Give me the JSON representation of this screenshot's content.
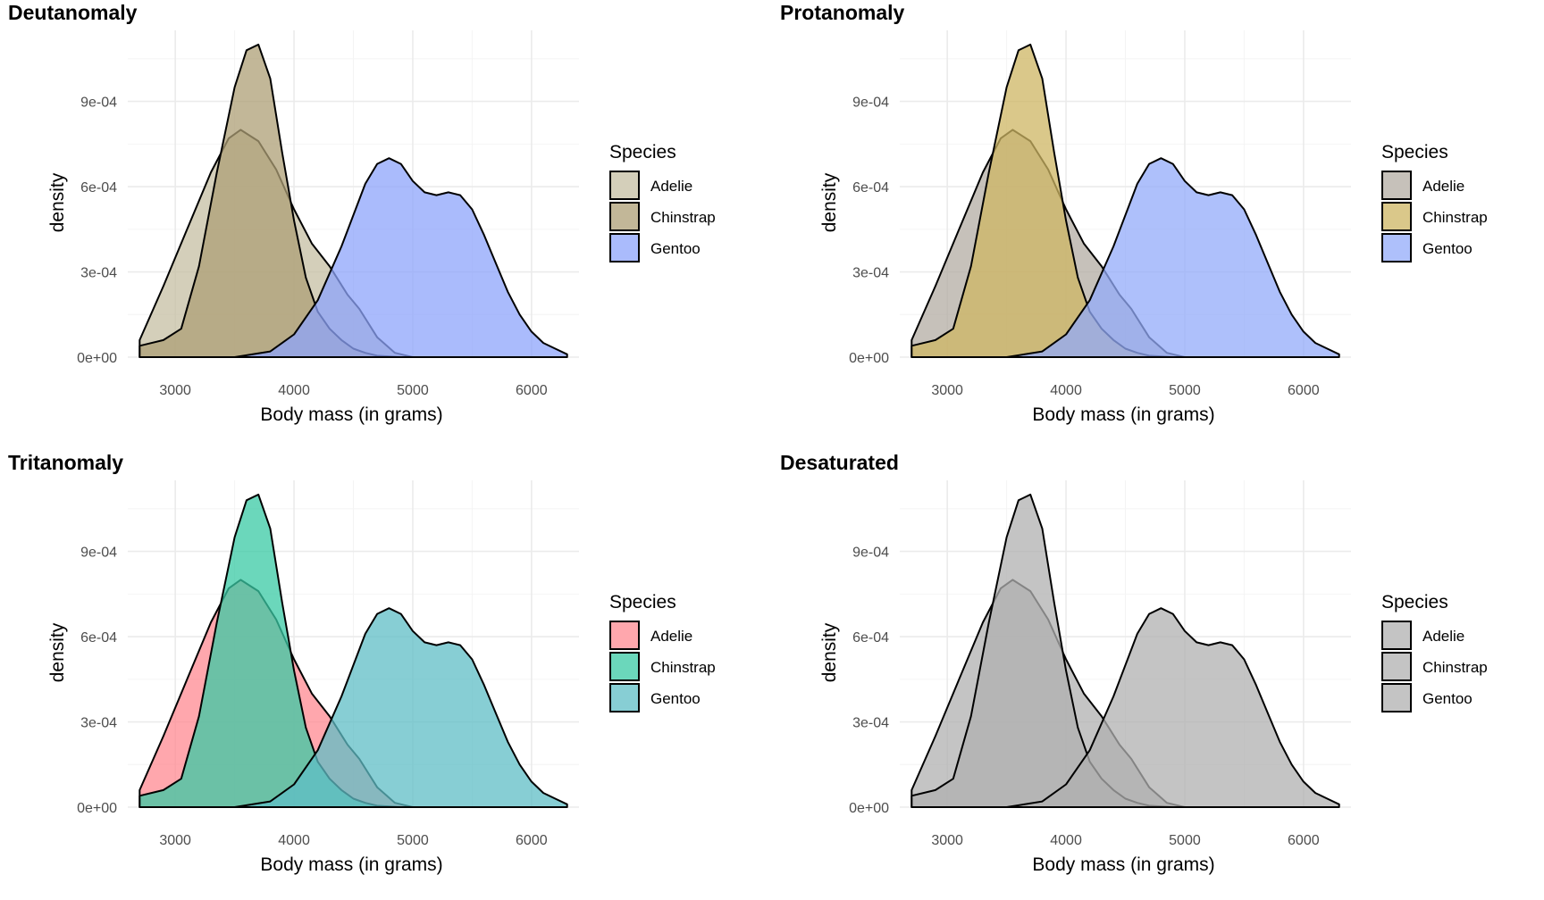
{
  "colors": {
    "outline": "#000000",
    "grid": "#ebebeb"
  },
  "chart_data": [
    {
      "type": "area",
      "title": "Deutanomaly",
      "xlabel": "Body mass (in grams)",
      "ylabel": "density",
      "xlim": [
        2600,
        6400
      ],
      "ylim": [
        0,
        0.00115
      ],
      "xticks": [
        3000,
        4000,
        5000,
        6000
      ],
      "xtick_labels": [
        "3000",
        "4000",
        "5000",
        "6000"
      ],
      "yticks": [
        0,
        0.0003,
        0.0006,
        0.0009
      ],
      "ytick_labels": [
        "0e+00",
        "3e-04",
        "6e-04",
        "9e-04"
      ],
      "grid": true,
      "legend": {
        "title": "Species",
        "position": "right"
      },
      "series": [
        {
          "name": "Adelie",
          "color": "#c6bfa3",
          "x": [
            2700,
            2900,
            3100,
            3300,
            3450,
            3550,
            3700,
            3850,
            4000,
            4150,
            4300,
            4450,
            4550,
            4700,
            4850,
            5000
          ],
          "y": [
            6e-05,
            0.00025,
            0.00045,
            0.00065,
            0.00077,
            0.0008,
            0.00076,
            0.00066,
            0.00052,
            0.0004,
            0.00032,
            0.00022,
            0.00017,
            7e-05,
            1.5e-05,
            0.0
          ]
        },
        {
          "name": "Chinstrap",
          "color": "#ae9f76",
          "x": [
            2700,
            2900,
            3050,
            3200,
            3350,
            3500,
            3600,
            3700,
            3800,
            3900,
            4000,
            4100,
            4200,
            4300,
            4400,
            4500,
            4600,
            4700,
            4900
          ],
          "y": [
            4e-05,
            6e-05,
            0.0001,
            0.00032,
            0.00065,
            0.00095,
            0.00108,
            0.0011,
            0.00098,
            0.00072,
            0.00048,
            0.00028,
            0.00016,
            0.0001,
            6e-05,
            3e-05,
            1.5e-05,
            5e-06,
            0.0
          ]
        },
        {
          "name": "Gentoo",
          "color": "#8ea4fb",
          "x": [
            3500,
            3800,
            4000,
            4200,
            4400,
            4600,
            4700,
            4800,
            4900,
            5000,
            5100,
            5200,
            5300,
            5400,
            5500,
            5600,
            5700,
            5800,
            5900,
            6000,
            6100,
            6200,
            6300
          ],
          "y": [
            0.0,
            2e-05,
            8e-05,
            0.0002,
            0.00039,
            0.00061,
            0.00068,
            0.0007,
            0.00068,
            0.00062,
            0.00058,
            0.00057,
            0.00058,
            0.00057,
            0.00052,
            0.00043,
            0.00033,
            0.00023,
            0.00015,
            9e-05,
            5e-05,
            3e-05,
            1e-05
          ]
        }
      ]
    },
    {
      "type": "area",
      "title": "Protanomaly",
      "xlabel": "Body mass (in grams)",
      "ylabel": "density",
      "xlim": [
        2600,
        6400
      ],
      "ylim": [
        0,
        0.00115
      ],
      "xticks": [
        3000,
        4000,
        5000,
        6000
      ],
      "xtick_labels": [
        "3000",
        "4000",
        "5000",
        "6000"
      ],
      "yticks": [
        0,
        0.0003,
        0.0006,
        0.0009
      ],
      "ytick_labels": [
        "0e+00",
        "3e-04",
        "6e-04",
        "9e-04"
      ],
      "grid": true,
      "legend": {
        "title": "Species",
        "position": "right"
      },
      "series": [
        {
          "name": "Adelie",
          "color": "#b3aca3",
          "x": [
            2700,
            2900,
            3100,
            3300,
            3450,
            3550,
            3700,
            3850,
            4000,
            4150,
            4300,
            4450,
            4550,
            4700,
            4850,
            5000
          ],
          "y": [
            6e-05,
            0.00025,
            0.00045,
            0.00065,
            0.00077,
            0.0008,
            0.00076,
            0.00066,
            0.00052,
            0.0004,
            0.00032,
            0.00022,
            0.00017,
            7e-05,
            1.5e-05,
            0.0
          ]
        },
        {
          "name": "Chinstrap",
          "color": "#cdb563",
          "x": [
            2700,
            2900,
            3050,
            3200,
            3350,
            3500,
            3600,
            3700,
            3800,
            3900,
            4000,
            4100,
            4200,
            4300,
            4400,
            4500,
            4600,
            4700,
            4900
          ],
          "y": [
            4e-05,
            6e-05,
            0.0001,
            0.00032,
            0.00065,
            0.00095,
            0.00108,
            0.0011,
            0.00098,
            0.00072,
            0.00048,
            0.00028,
            0.00016,
            0.0001,
            6e-05,
            3e-05,
            1.5e-05,
            5e-06,
            0.0
          ]
        },
        {
          "name": "Gentoo",
          "color": "#93abfa",
          "x": [
            3500,
            3800,
            4000,
            4200,
            4400,
            4600,
            4700,
            4800,
            4900,
            5000,
            5100,
            5200,
            5300,
            5400,
            5500,
            5600,
            5700,
            5800,
            5900,
            6000,
            6100,
            6200,
            6300
          ],
          "y": [
            0.0,
            2e-05,
            8e-05,
            0.0002,
            0.00039,
            0.00061,
            0.00068,
            0.0007,
            0.00068,
            0.00062,
            0.00058,
            0.00057,
            0.00058,
            0.00057,
            0.00052,
            0.00043,
            0.00033,
            0.00023,
            0.00015,
            9e-05,
            5e-05,
            3e-05,
            1e-05
          ]
        }
      ]
    },
    {
      "type": "area",
      "title": "Tritanomaly",
      "xlabel": "Body mass (in grams)",
      "ylabel": "density",
      "xlim": [
        2600,
        6400
      ],
      "ylim": [
        0,
        0.00115
      ],
      "xticks": [
        3000,
        4000,
        5000,
        6000
      ],
      "xtick_labels": [
        "3000",
        "4000",
        "5000",
        "6000"
      ],
      "yticks": [
        0,
        0.0003,
        0.0006,
        0.0009
      ],
      "ytick_labels": [
        "0e+00",
        "3e-04",
        "6e-04",
        "9e-04"
      ],
      "grid": true,
      "legend": {
        "title": "Species",
        "position": "right"
      },
      "series": [
        {
          "name": "Adelie",
          "color": "#ff8a91",
          "x": [
            2700,
            2900,
            3100,
            3300,
            3450,
            3550,
            3700,
            3850,
            4000,
            4150,
            4300,
            4450,
            4550,
            4700,
            4850,
            5000
          ],
          "y": [
            6e-05,
            0.00025,
            0.00045,
            0.00065,
            0.00077,
            0.0008,
            0.00076,
            0.00066,
            0.00052,
            0.0004,
            0.00032,
            0.00022,
            0.00017,
            7e-05,
            1.5e-05,
            0.0
          ]
        },
        {
          "name": "Chinstrap",
          "color": "#39c9a4",
          "x": [
            2700,
            2900,
            3050,
            3200,
            3350,
            3500,
            3600,
            3700,
            3800,
            3900,
            4000,
            4100,
            4200,
            4300,
            4400,
            4500,
            4600,
            4700,
            4900
          ],
          "y": [
            4e-05,
            6e-05,
            0.0001,
            0.00032,
            0.00065,
            0.00095,
            0.00108,
            0.0011,
            0.00098,
            0.00072,
            0.00048,
            0.00028,
            0.00016,
            0.0001,
            6e-05,
            3e-05,
            1.5e-05,
            5e-06,
            0.0
          ]
        },
        {
          "name": "Gentoo",
          "color": "#5fbdc6",
          "x": [
            3500,
            3800,
            4000,
            4200,
            4400,
            4600,
            4700,
            4800,
            4900,
            5000,
            5100,
            5200,
            5300,
            5400,
            5500,
            5600,
            5700,
            5800,
            5900,
            6000,
            6100,
            6200,
            6300
          ],
          "y": [
            0.0,
            2e-05,
            8e-05,
            0.0002,
            0.00039,
            0.00061,
            0.00068,
            0.0007,
            0.00068,
            0.00062,
            0.00058,
            0.00057,
            0.00058,
            0.00057,
            0.00052,
            0.00043,
            0.00033,
            0.00023,
            0.00015,
            9e-05,
            5e-05,
            3e-05,
            1e-05
          ]
        }
      ]
    },
    {
      "type": "area",
      "title": "Desaturated",
      "xlabel": "Body mass (in grams)",
      "ylabel": "density",
      "xlim": [
        2600,
        6400
      ],
      "ylim": [
        0,
        0.00115
      ],
      "xticks": [
        3000,
        4000,
        5000,
        6000
      ],
      "xtick_labels": [
        "3000",
        "4000",
        "5000",
        "6000"
      ],
      "yticks": [
        0,
        0.0003,
        0.0006,
        0.0009
      ],
      "ytick_labels": [
        "0e+00",
        "3e-04",
        "6e-04",
        "9e-04"
      ],
      "grid": true,
      "legend": {
        "title": "Species",
        "position": "right"
      },
      "series": [
        {
          "name": "Adelie",
          "color": "#b0b0b0",
          "x": [
            2700,
            2900,
            3100,
            3300,
            3450,
            3550,
            3700,
            3850,
            4000,
            4150,
            4300,
            4450,
            4550,
            4700,
            4850,
            5000
          ],
          "y": [
            6e-05,
            0.00025,
            0.00045,
            0.00065,
            0.00077,
            0.0008,
            0.00076,
            0.00066,
            0.00052,
            0.0004,
            0.00032,
            0.00022,
            0.00017,
            7e-05,
            1.5e-05,
            0.0
          ]
        },
        {
          "name": "Chinstrap",
          "color": "#b0b0b0",
          "x": [
            2700,
            2900,
            3050,
            3200,
            3350,
            3500,
            3600,
            3700,
            3800,
            3900,
            4000,
            4100,
            4200,
            4300,
            4400,
            4500,
            4600,
            4700,
            4900
          ],
          "y": [
            4e-05,
            6e-05,
            0.0001,
            0.00032,
            0.00065,
            0.00095,
            0.00108,
            0.0011,
            0.00098,
            0.00072,
            0.00048,
            0.00028,
            0.00016,
            0.0001,
            6e-05,
            3e-05,
            1.5e-05,
            5e-06,
            0.0
          ]
        },
        {
          "name": "Gentoo",
          "color": "#b0b0b0",
          "x": [
            3500,
            3800,
            4000,
            4200,
            4400,
            4600,
            4700,
            4800,
            4900,
            5000,
            5100,
            5200,
            5300,
            5400,
            5500,
            5600,
            5700,
            5800,
            5900,
            6000,
            6100,
            6200,
            6300
          ],
          "y": [
            0.0,
            2e-05,
            8e-05,
            0.0002,
            0.00039,
            0.00061,
            0.00068,
            0.0007,
            0.00068,
            0.00062,
            0.00058,
            0.00057,
            0.00058,
            0.00057,
            0.00052,
            0.00043,
            0.00033,
            0.00023,
            0.00015,
            9e-05,
            5e-05,
            3e-05,
            1e-05
          ]
        }
      ]
    }
  ]
}
